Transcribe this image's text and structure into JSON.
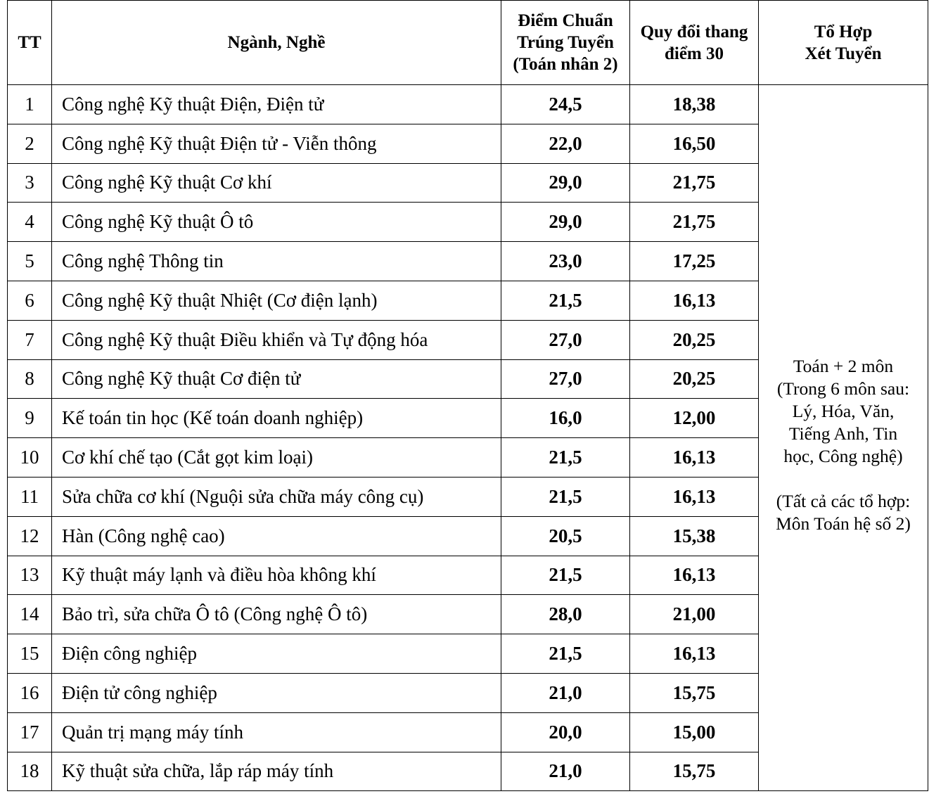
{
  "headers": {
    "tt": "TT",
    "major": "Ngành, Nghề",
    "score_lines": [
      "Điểm Chuẩn",
      "Trúng Tuyển",
      "(Toán nhân 2)"
    ],
    "scale30_lines": [
      "Quy đổi thang",
      "điểm 30"
    ],
    "combo_lines": [
      "Tổ Hợp",
      "Xét Tuyển"
    ]
  },
  "combo_text": {
    "lines1": [
      "Toán + 2 môn",
      "(Trong 6 môn sau:",
      "Lý, Hóa, Văn,",
      "Tiếng Anh, Tin",
      "học, Công nghệ)"
    ],
    "lines2": [
      "(Tất cả các tổ hợp:",
      "Môn Toán hệ số 2)"
    ]
  },
  "rows": [
    {
      "tt": "1",
      "name": "Công nghệ Kỹ thuật Điện, Điện tử",
      "score": "24,5",
      "scale30": "18,38"
    },
    {
      "tt": "2",
      "name": "Công nghệ Kỹ thuật Điện tử - Viễn thông",
      "score": "22,0",
      "scale30": "16,50"
    },
    {
      "tt": "3",
      "name": "Công nghệ Kỹ thuật Cơ khí",
      "score": "29,0",
      "scale30": "21,75"
    },
    {
      "tt": "4",
      "name": "Công nghệ Kỹ thuật Ô tô",
      "score": "29,0",
      "scale30": "21,75"
    },
    {
      "tt": "5",
      "name": "Công nghệ Thông tin",
      "score": "23,0",
      "scale30": "17,25"
    },
    {
      "tt": "6",
      "name": "Công nghệ Kỹ thuật Nhiệt (Cơ điện lạnh)",
      "score": "21,5",
      "scale30": "16,13"
    },
    {
      "tt": "7",
      "name": "Công nghệ Kỹ thuật Điều khiển và Tự động hóa",
      "score": "27,0",
      "scale30": "20,25"
    },
    {
      "tt": "8",
      "name": "Công nghệ Kỹ thuật Cơ điện tử",
      "score": "27,0",
      "scale30": "20,25"
    },
    {
      "tt": "9",
      "name": "Kế toán tin học (Kế toán doanh nghiệp)",
      "score": "16,0",
      "scale30": "12,00"
    },
    {
      "tt": "10",
      "name": "Cơ khí chế tạo (Cắt gọt kim loại)",
      "score": "21,5",
      "scale30": "16,13"
    },
    {
      "tt": "11",
      "name": "Sửa chữa cơ khí (Nguội sửa chữa máy công cụ)",
      "score": "21,5",
      "scale30": "16,13"
    },
    {
      "tt": "12",
      "name": "Hàn (Công nghệ cao)",
      "score": "20,5",
      "scale30": "15,38"
    },
    {
      "tt": "13",
      "name": "Kỹ thuật máy lạnh và điều hòa không khí",
      "score": "21,5",
      "scale30": "16,13"
    },
    {
      "tt": "14",
      "name": "Bảo trì, sửa chữa Ô tô (Công nghệ Ô tô)",
      "score": "28,0",
      "scale30": "21,00"
    },
    {
      "tt": "15",
      "name": "Điện công nghiệp",
      "score": "21,5",
      "scale30": "16,13"
    },
    {
      "tt": "16",
      "name": "Điện tử công nghiệp",
      "score": "21,0",
      "scale30": "15,75"
    },
    {
      "tt": "17",
      "name": "Quản trị mạng máy tính",
      "score": "20,0",
      "scale30": "15,00"
    },
    {
      "tt": "18",
      "name": "Kỹ thuật sửa chữa, lắp ráp máy tính",
      "score": "21,0",
      "scale30": "15,75"
    }
  ]
}
